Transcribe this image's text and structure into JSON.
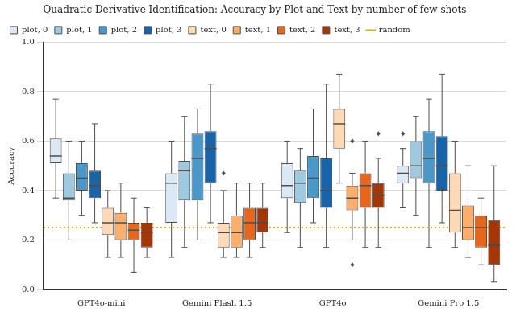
{
  "chart_data": {
    "type": "box",
    "title": "Quadratic Derivative Identification: Accuracy by Plot and Text by number of few shots",
    "y_label": "Accuracy",
    "categories": [
      "GPT4o-mini",
      "Gemini Flash 1.5",
      "GPT4o",
      "Gemini Pro 1.5"
    ],
    "ylim": [
      0,
      1
    ],
    "yticks": [
      {
        "value": 0,
        "label": "0.0"
      },
      {
        "value": 0.2,
        "label": "0.2"
      },
      {
        "value": 0.4,
        "label": "0.4"
      },
      {
        "value": 0.6,
        "label": "0.6"
      },
      {
        "value": 0.8,
        "label": "0.8"
      },
      {
        "value": 1,
        "label": "1.0"
      }
    ],
    "grid": true,
    "legend": "upper left",
    "series": [
      {
        "name": "plot, 0",
        "color": "#dbe9f6",
        "values": [
          {
            "min": 0.37,
            "q1": 0.51,
            "median": 0.54,
            "q3": 0.61,
            "max": 0.77,
            "outliers": []
          },
          {
            "min": 0.13,
            "q1": 0.27,
            "median": 0.43,
            "q3": 0.47,
            "max": 0.6,
            "outliers": []
          },
          {
            "min": 0.23,
            "q1": 0.37,
            "median": 0.42,
            "q3": 0.51,
            "max": 0.6,
            "outliers": []
          },
          {
            "min": 0.33,
            "q1": 0.43,
            "median": 0.47,
            "q3": 0.5,
            "max": 0.57,
            "outliers": [
              0.63
            ]
          }
        ]
      },
      {
        "name": "plot, 1",
        "color": "#9ecae1",
        "values": [
          {
            "min": 0.2,
            "q1": 0.36,
            "median": 0.37,
            "q3": 0.47,
            "max": 0.6,
            "outliers": []
          },
          {
            "min": 0.17,
            "q1": 0.36,
            "median": 0.48,
            "q3": 0.52,
            "max": 0.7,
            "outliers": []
          },
          {
            "min": 0.17,
            "q1": 0.35,
            "median": 0.43,
            "q3": 0.48,
            "max": 0.57,
            "outliers": []
          },
          {
            "min": 0.3,
            "q1": 0.45,
            "median": 0.5,
            "q3": 0.6,
            "max": 0.7,
            "outliers": []
          }
        ]
      },
      {
        "name": "plot, 2",
        "color": "#4a98c9",
        "values": [
          {
            "min": 0.3,
            "q1": 0.4,
            "median": 0.45,
            "q3": 0.51,
            "max": 0.6,
            "outliers": []
          },
          {
            "min": 0.2,
            "q1": 0.36,
            "median": 0.53,
            "q3": 0.63,
            "max": 0.73,
            "outliers": []
          },
          {
            "min": 0.27,
            "q1": 0.37,
            "median": 0.45,
            "q3": 0.54,
            "max": 0.73,
            "outliers": []
          },
          {
            "min": 0.17,
            "q1": 0.43,
            "median": 0.53,
            "q3": 0.64,
            "max": 0.77,
            "outliers": []
          }
        ]
      },
      {
        "name": "plot, 3",
        "color": "#1764ab",
        "values": [
          {
            "min": 0.27,
            "q1": 0.37,
            "median": 0.42,
            "q3": 0.48,
            "max": 0.67,
            "outliers": []
          },
          {
            "min": 0.27,
            "q1": 0.43,
            "median": 0.57,
            "q3": 0.64,
            "max": 0.83,
            "outliers": []
          },
          {
            "min": 0.17,
            "q1": 0.33,
            "median": 0.4,
            "q3": 0.53,
            "max": 0.83,
            "outliers": []
          },
          {
            "min": 0.27,
            "q1": 0.4,
            "median": 0.5,
            "q3": 0.62,
            "max": 0.87,
            "outliers": []
          }
        ]
      },
      {
        "name": "text, 0",
        "color": "#fdd9b5",
        "values": [
          {
            "min": 0.13,
            "q1": 0.22,
            "median": 0.27,
            "q3": 0.33,
            "max": 0.4,
            "outliers": []
          },
          {
            "min": 0.13,
            "q1": 0.17,
            "median": 0.23,
            "q3": 0.27,
            "max": 0.4,
            "outliers": [
              0.47
            ]
          },
          {
            "min": 0.43,
            "q1": 0.57,
            "median": 0.67,
            "q3": 0.73,
            "max": 0.87,
            "outliers": []
          },
          {
            "min": 0.17,
            "q1": 0.23,
            "median": 0.32,
            "q3": 0.47,
            "max": 0.6,
            "outliers": []
          }
        ]
      },
      {
        "name": "text, 1",
        "color": "#fdae6b",
        "values": [
          {
            "min": 0.13,
            "q1": 0.2,
            "median": 0.27,
            "q3": 0.31,
            "max": 0.43,
            "outliers": []
          },
          {
            "min": 0.13,
            "q1": 0.17,
            "median": 0.23,
            "q3": 0.3,
            "max": 0.43,
            "outliers": []
          },
          {
            "min": 0.2,
            "q1": 0.32,
            "median": 0.37,
            "q3": 0.42,
            "max": 0.47,
            "outliers": [
              0.6,
              0.1
            ]
          },
          {
            "min": 0.13,
            "q1": 0.2,
            "median": 0.25,
            "q3": 0.34,
            "max": 0.5,
            "outliers": []
          }
        ]
      },
      {
        "name": "text, 2",
        "color": "#e8661a",
        "values": [
          {
            "min": 0.07,
            "q1": 0.2,
            "median": 0.24,
            "q3": 0.27,
            "max": 0.37,
            "outliers": []
          },
          {
            "min": 0.13,
            "q1": 0.2,
            "median": 0.27,
            "q3": 0.33,
            "max": 0.43,
            "outliers": []
          },
          {
            "min": 0.17,
            "q1": 0.33,
            "median": 0.42,
            "q3": 0.47,
            "max": 0.6,
            "outliers": []
          },
          {
            "min": 0.1,
            "q1": 0.17,
            "median": 0.25,
            "q3": 0.3,
            "max": 0.37,
            "outliers": []
          }
        ]
      },
      {
        "name": "text, 3",
        "color": "#a63603",
        "values": [
          {
            "min": 0.13,
            "q1": 0.17,
            "median": 0.23,
            "q3": 0.27,
            "max": 0.33,
            "outliers": []
          },
          {
            "min": 0.17,
            "q1": 0.23,
            "median": 0.27,
            "q3": 0.33,
            "max": 0.43,
            "outliers": []
          },
          {
            "min": 0.17,
            "q1": 0.33,
            "median": 0.38,
            "q3": 0.43,
            "max": 0.53,
            "outliers": [
              0.63
            ]
          },
          {
            "min": 0.03,
            "q1": 0.1,
            "median": 0.18,
            "q3": 0.28,
            "max": 0.5,
            "outliers": []
          }
        ]
      }
    ],
    "hlines": [
      {
        "name": "random",
        "value": 0.25,
        "color": "#d4b106",
        "line_style": "dotted"
      }
    ]
  }
}
